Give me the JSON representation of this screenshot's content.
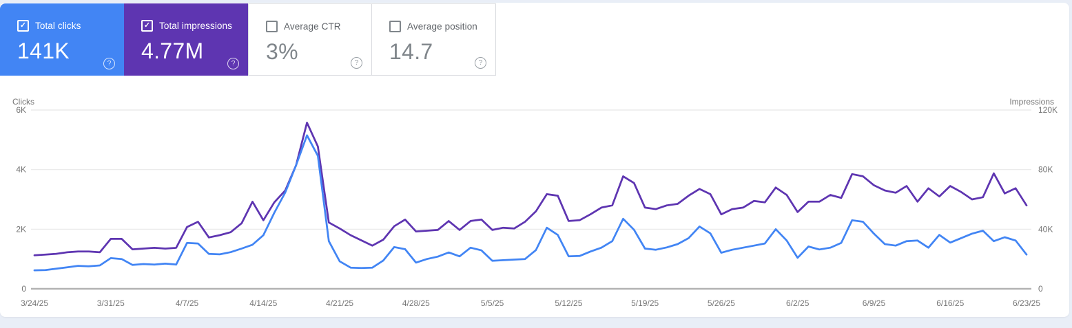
{
  "page": {
    "background": "#e9eef7",
    "panel_background": "#ffffff"
  },
  "checkmark_glyph": "✓",
  "help_icon_glyph": "?",
  "cards": [
    {
      "label": "Total clicks",
      "value": "141K",
      "checked": true,
      "bg": "#4285f4"
    },
    {
      "label": "Total impressions",
      "value": "4.77M",
      "checked": true,
      "bg": "#5e35b1"
    },
    {
      "label": "Average CTR",
      "value": "3%",
      "checked": false,
      "bg": "#ffffff"
    },
    {
      "label": "Average position",
      "value": "14.7",
      "checked": false,
      "bg": "#ffffff"
    }
  ],
  "chart_data": {
    "type": "line",
    "grid": "horizontal",
    "legend": "none",
    "x_tick_every": 7,
    "x_tick_labels": [
      "3/24/25",
      "3/31/25",
      "4/7/25",
      "4/14/25",
      "4/21/25",
      "4/28/25",
      "5/5/25",
      "5/12/25",
      "5/19/25",
      "5/26/25",
      "6/2/25",
      "6/9/25",
      "6/16/25",
      "6/23/25"
    ],
    "x_dates": [
      "3/24/25",
      "3/25/25",
      "3/26/25",
      "3/27/25",
      "3/28/25",
      "3/29/25",
      "3/30/25",
      "3/31/25",
      "4/1/25",
      "4/2/25",
      "4/3/25",
      "4/4/25",
      "4/5/25",
      "4/6/25",
      "4/7/25",
      "4/8/25",
      "4/9/25",
      "4/10/25",
      "4/11/25",
      "4/12/25",
      "4/13/25",
      "4/14/25",
      "4/15/25",
      "4/16/25",
      "4/17/25",
      "4/18/25",
      "4/19/25",
      "4/20/25",
      "4/21/25",
      "4/22/25",
      "4/23/25",
      "4/24/25",
      "4/25/25",
      "4/26/25",
      "4/27/25",
      "4/28/25",
      "4/29/25",
      "4/30/25",
      "5/1/25",
      "5/2/25",
      "5/3/25",
      "5/4/25",
      "5/5/25",
      "5/6/25",
      "5/7/25",
      "5/8/25",
      "5/9/25",
      "5/10/25",
      "5/11/25",
      "5/12/25",
      "5/13/25",
      "5/14/25",
      "5/15/25",
      "5/16/25",
      "5/17/25",
      "5/18/25",
      "5/19/25",
      "5/20/25",
      "5/21/25",
      "5/22/25",
      "5/23/25",
      "5/24/25",
      "5/25/25",
      "5/26/25",
      "5/27/25",
      "5/28/25",
      "5/29/25",
      "5/30/25",
      "5/31/25",
      "6/1/25",
      "6/2/25",
      "6/3/25",
      "6/4/25",
      "6/5/25",
      "6/6/25",
      "6/7/25",
      "6/8/25",
      "6/9/25",
      "6/10/25",
      "6/11/25",
      "6/12/25",
      "6/13/25",
      "6/14/25",
      "6/15/25",
      "6/16/25",
      "6/17/25",
      "6/18/25",
      "6/19/25",
      "6/20/25",
      "6/21/25",
      "6/22/25",
      "6/23/25"
    ],
    "series": [
      {
        "name": "Clicks",
        "color": "#4285f4",
        "axis": "left",
        "values": [
          620,
          630,
          675,
          720,
          770,
          755,
          785,
          1030,
          1000,
          800,
          830,
          815,
          845,
          815,
          1540,
          1520,
          1170,
          1155,
          1230,
          1350,
          1480,
          1800,
          2550,
          3230,
          4150,
          5150,
          4460,
          1600,
          920,
          710,
          700,
          710,
          950,
          1400,
          1330,
          880,
          1000,
          1080,
          1220,
          1090,
          1380,
          1290,
          940,
          960,
          980,
          1000,
          1300,
          2050,
          1810,
          1090,
          1100,
          1250,
          1380,
          1600,
          2350,
          1980,
          1350,
          1310,
          1390,
          1500,
          1700,
          2090,
          1860,
          1210,
          1310,
          1380,
          1450,
          1520,
          2000,
          1620,
          1040,
          1420,
          1320,
          1380,
          1540,
          2300,
          2250,
          1850,
          1500,
          1450,
          1600,
          1620,
          1380,
          1810,
          1550,
          1700,
          1850,
          1950,
          1600,
          1730,
          1620,
          1150
        ]
      },
      {
        "name": "Impressions",
        "color": "#5e35b1",
        "axis": "right",
        "values": [
          22500,
          23000,
          23500,
          24500,
          25000,
          25000,
          24500,
          33500,
          33500,
          26500,
          27000,
          27500,
          27000,
          27500,
          41500,
          45000,
          34500,
          36000,
          38000,
          44000,
          58500,
          46000,
          58000,
          66000,
          83000,
          111500,
          95500,
          44500,
          40500,
          36000,
          32500,
          29000,
          33000,
          42000,
          46500,
          38500,
          39000,
          39500,
          45500,
          39500,
          45500,
          46500,
          39500,
          41000,
          40500,
          45000,
          52000,
          63500,
          62500,
          45500,
          46000,
          50000,
          54500,
          56000,
          75500,
          71000,
          54500,
          53500,
          56000,
          57000,
          62500,
          67000,
          63500,
          50000,
          53500,
          54500,
          59000,
          58000,
          68000,
          63000,
          51500,
          58500,
          58500,
          63000,
          61000,
          77000,
          75500,
          69500,
          66000,
          64500,
          69000,
          58500,
          67500,
          62000,
          69000,
          65000,
          60000,
          61500,
          77500,
          64000,
          67500,
          56000
        ]
      }
    ],
    "left_axis": {
      "title": "Clicks",
      "max": 6000,
      "ticks": [
        {
          "label": "0",
          "value": 0
        },
        {
          "label": "2K",
          "value": 2000
        },
        {
          "label": "4K",
          "value": 4000
        },
        {
          "label": "6K",
          "value": 6000
        }
      ]
    },
    "right_axis": {
      "title": "Impressions",
      "max": 120000,
      "ticks": [
        {
          "label": "0",
          "value": 0
        },
        {
          "label": "40K",
          "value": 40000
        },
        {
          "label": "80K",
          "value": 80000
        },
        {
          "label": "120K",
          "value": 120000
        }
      ]
    },
    "styles": {
      "grid_color": "#e8e8e8",
      "zero_line_color": "#b3b3b3",
      "tick_color": "#757575",
      "axis_title_color": "#757575"
    }
  }
}
